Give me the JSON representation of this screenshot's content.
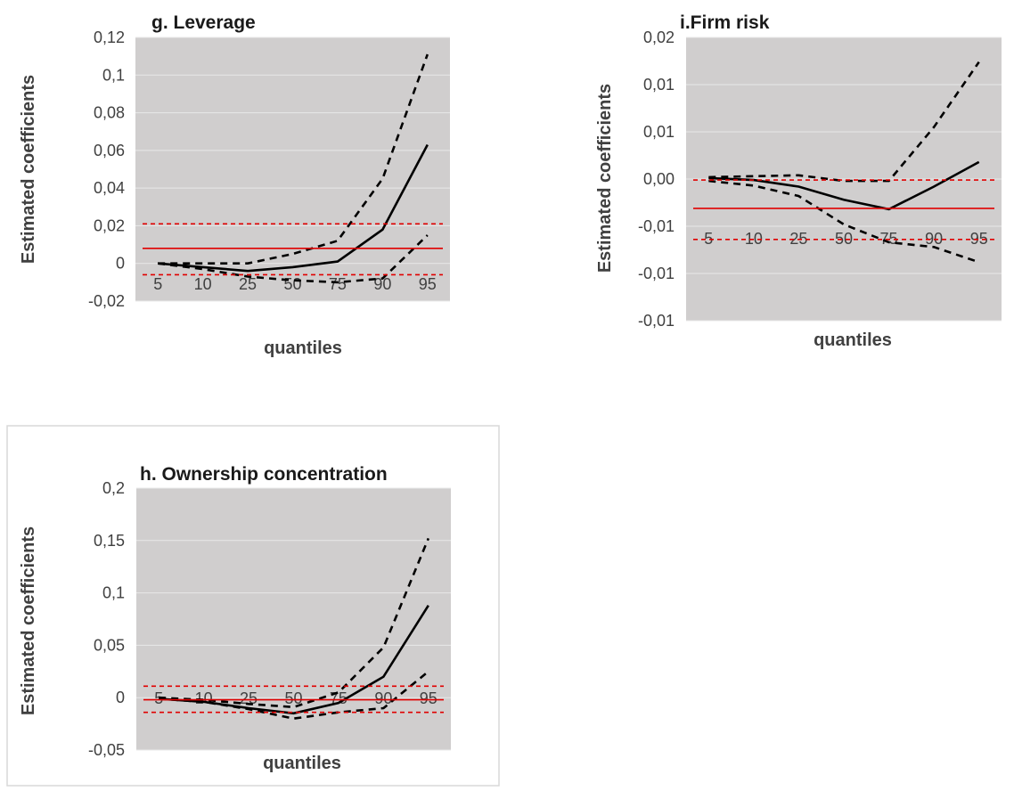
{
  "chart_data": [
    {
      "type": "line",
      "title": "g. Leverage",
      "xlabel": "quantiles",
      "ylabel": "Estimated coefficients",
      "categories": [
        "5",
        "10",
        "25",
        "50",
        "75",
        "90",
        "95"
      ],
      "yticks": [
        "-0,02",
        "0",
        "0,02",
        "0,04",
        "0,06",
        "0,08",
        "0,1",
        "0,12"
      ],
      "ylim": [
        -0.02,
        0.12
      ],
      "series": [
        {
          "style": "solid-black",
          "values": [
            0.0,
            -0.002,
            -0.004,
            -0.002,
            0.001,
            0.018,
            0.063
          ]
        },
        {
          "style": "dashed-black",
          "values": [
            0.0,
            0.0,
            0.0,
            0.005,
            0.012,
            0.045,
            0.111
          ]
        },
        {
          "style": "dashed-black",
          "values": [
            0.0,
            -0.003,
            -0.007,
            -0.009,
            -0.01,
            -0.008,
            0.015
          ]
        },
        {
          "style": "solid-red",
          "values": [
            0.008,
            0.008,
            0.008,
            0.008,
            0.008,
            0.008,
            0.008
          ]
        },
        {
          "style": "dashed-red",
          "values": [
            0.021,
            0.021,
            0.021,
            0.021,
            0.021,
            0.021,
            0.021
          ]
        },
        {
          "style": "dashed-red",
          "values": [
            -0.006,
            -0.006,
            -0.006,
            -0.006,
            -0.006,
            -0.006,
            -0.006
          ]
        }
      ]
    },
    {
      "type": "line",
      "title": "i.Firm risk",
      "xlabel": "quantiles",
      "ylabel": "Estimated coefficients",
      "categories": [
        "5",
        "10",
        "25",
        "50",
        "75",
        "90",
        "95"
      ],
      "yticks": [
        "-0,01",
        "-0,01",
        "-0,01",
        "0,00",
        "0,01",
        "0,01",
        "0,02"
      ],
      "ylim": [
        -0.015,
        0.015
      ],
      "series": [
        {
          "style": "solid-black",
          "values": [
            0.0001,
            -0.0001,
            -0.0008,
            -0.0022,
            -0.0032,
            -0.0008,
            0.0018
          ]
        },
        {
          "style": "dashed-black",
          "values": [
            0.0002,
            0.0003,
            0.0004,
            -0.0002,
            -0.0002,
            0.0055,
            0.0124
          ]
        },
        {
          "style": "dashed-black",
          "values": [
            -0.0002,
            -0.0007,
            -0.0018,
            -0.0048,
            -0.0067,
            -0.0072,
            -0.0088
          ]
        },
        {
          "style": "solid-red",
          "values": [
            -0.0031,
            -0.0031,
            -0.0031,
            -0.0031,
            -0.0031,
            -0.0031,
            -0.0031
          ]
        },
        {
          "style": "dashed-red",
          "values": [
            -0.0001,
            -0.0001,
            -0.0001,
            -0.0001,
            -0.0001,
            -0.0001,
            -0.0001
          ]
        },
        {
          "style": "dashed-red",
          "values": [
            -0.0064,
            -0.0064,
            -0.0064,
            -0.0064,
            -0.0064,
            -0.0064,
            -0.0064
          ]
        }
      ]
    },
    {
      "type": "line",
      "title": "h. Ownership concentration",
      "xlabel": "quantiles",
      "ylabel": "Estimated coefficients",
      "categories": [
        "5",
        "10",
        "25",
        "50",
        "75",
        "90",
        "95"
      ],
      "yticks": [
        "-0,05",
        "0",
        "0,05",
        "0,1",
        "0,15",
        "0,2"
      ],
      "ylim": [
        -0.05,
        0.2
      ],
      "series": [
        {
          "style": "solid-black",
          "values": [
            -0.001,
            -0.004,
            -0.01,
            -0.015,
            -0.005,
            0.02,
            0.088
          ]
        },
        {
          "style": "dashed-black",
          "values": [
            0.0,
            -0.002,
            -0.006,
            -0.009,
            0.005,
            0.048,
            0.152
          ]
        },
        {
          "style": "dashed-black",
          "values": [
            -0.001,
            -0.004,
            -0.011,
            -0.02,
            -0.014,
            -0.01,
            0.025
          ]
        },
        {
          "style": "solid-red",
          "values": [
            -0.002,
            -0.002,
            -0.002,
            -0.002,
            -0.002,
            -0.002,
            -0.002
          ]
        },
        {
          "style": "dashed-red",
          "values": [
            0.011,
            0.011,
            0.011,
            0.011,
            0.011,
            0.011,
            0.011
          ]
        },
        {
          "style": "dashed-red",
          "values": [
            -0.014,
            -0.014,
            -0.014,
            -0.014,
            -0.014,
            -0.014,
            -0.014
          ]
        }
      ]
    }
  ],
  "colors": {
    "plot_background": "#d0cece",
    "gridline": "#e8e8e8",
    "axis_text": "#404040",
    "black_series": "#000000",
    "red_series": "#e00000",
    "panel_border": "#d9d9d9"
  }
}
